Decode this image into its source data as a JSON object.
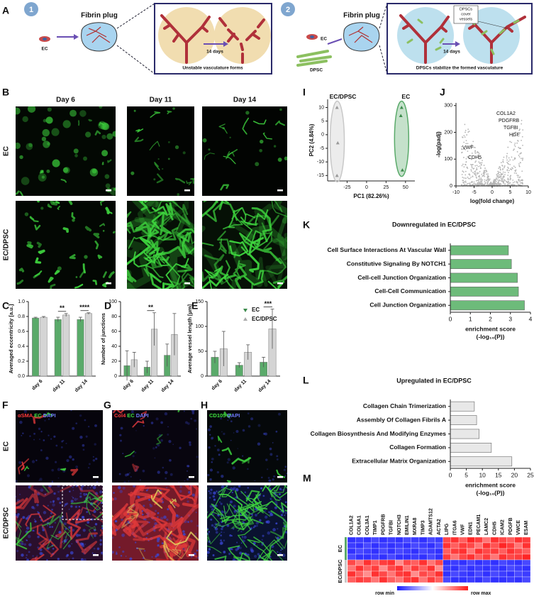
{
  "figure": {
    "labels": [
      "A",
      "B",
      "F",
      "G",
      "H"
    ],
    "schematic": {
      "step1": "1",
      "step2": "2",
      "plug1": "Fibrin plug",
      "plug2": "Fibrin plug",
      "ec1": "EC",
      "ec2": "EC",
      "dpsc": "DPSC",
      "days1": "14 days",
      "days2": "14 days",
      "cover": [
        "DPSCs",
        "cover",
        "vessels"
      ],
      "caption1": "Unstable vasculature forms",
      "caption2": "DPSCs stabilize the formed vasculature"
    },
    "imaging_b": {
      "columns": [
        "Day 6",
        "Day 11",
        "Day 14"
      ],
      "rows": [
        "EC",
        "EC/DPSC"
      ]
    },
    "imaging_fgh": {
      "rows": [
        "EC",
        "EC/DPSC"
      ],
      "stains": [
        [
          {
            "text": "αSMA",
            "color": "#ff3b3b"
          },
          {
            "text": "EC",
            "color": "#3fe03f"
          },
          {
            "text": "DAPI",
            "color": "#6f7bff"
          }
        ],
        [
          {
            "text": "Col4",
            "color": "#ff3b3b"
          },
          {
            "text": "EC",
            "color": "#3fe03f"
          },
          {
            "text": "DAPI",
            "color": "#6f7bff"
          }
        ],
        [
          {
            "text": "CD105",
            "color": "#3fe03f"
          },
          {
            "text": "DAPI",
            "color": "#6f7bff"
          }
        ]
      ]
    },
    "legend": {
      "series": [
        {
          "name": "EC",
          "color": "#5aaa6a"
        },
        {
          "name": "EC/DPSC",
          "color": "#d4d4d4"
        }
      ]
    }
  },
  "chart_data": [
    {
      "type": "grouped_bar",
      "label": "C",
      "ylabel": "Averaged eccentricity [a.u.]",
      "categories": [
        "day 6",
        "day 11",
        "day 14"
      ],
      "series": [
        {
          "values": [
            0.78,
            0.76,
            0.76
          ],
          "errors": [
            0.01,
            0.03,
            0.03
          ]
        },
        {
          "values": [
            0.79,
            0.82,
            0.84
          ],
          "errors": [
            0.01,
            0.02,
            0.01
          ]
        }
      ],
      "annotations": [
        null,
        "**",
        "****"
      ],
      "ylim": [
        0,
        1
      ],
      "yticks": [
        {
          "value": 0,
          "label": "0.0"
        },
        0.2,
        0.4,
        0.6,
        0.8,
        {
          "value": 1,
          "label": "1.0"
        }
      ]
    },
    {
      "type": "grouped_bar",
      "label": "D",
      "ylabel": "Number of junctions",
      "categories": [
        "day 6",
        "day 11",
        "day 14"
      ],
      "series": [
        {
          "values": [
            14,
            12,
            28
          ],
          "errors": [
            20,
            8,
            15
          ]
        },
        {
          "values": [
            22,
            63,
            56
          ],
          "errors": [
            10,
            22,
            28
          ]
        }
      ],
      "annotations": [
        null,
        "**",
        null
      ],
      "ylim": [
        0,
        100
      ],
      "yticks": [
        0,
        20,
        40,
        60,
        80,
        100
      ]
    },
    {
      "type": "grouped_bar",
      "label": "E",
      "ylabel": "Average vessel length [µm]",
      "categories": [
        "day 6",
        "day 11",
        "day 14"
      ],
      "series": [
        {
          "values": [
            38,
            22,
            28
          ],
          "errors": [
            12,
            5,
            10
          ]
        },
        {
          "values": [
            55,
            48,
            95
          ],
          "errors": [
            35,
            15,
            40
          ]
        }
      ],
      "annotations": [
        null,
        null,
        "***"
      ],
      "ylim": [
        0,
        150
      ],
      "yticks": [
        0,
        50,
        100,
        150
      ]
    },
    {
      "type": "scatter",
      "label": "I",
      "xlabel": "PC1 (82.26%)",
      "ylabel": "PC2 (4.84%)",
      "series": [
        {
          "name": "EC/DPSC",
          "color": "#c8c8c8",
          "x": [
            -38,
            -37,
            -38
          ],
          "values": [
            10,
            -3,
            -15
          ]
        },
        {
          "name": "EC",
          "color": "#5aaa6a",
          "x": [
            45,
            44,
            46
          ],
          "values": [
            10,
            7,
            -13
          ]
        }
      ],
      "xlim": [
        -50,
        62
      ],
      "ylim": [
        -17,
        13
      ],
      "xticks": [
        -25,
        0,
        25,
        50
      ],
      "yticks": [
        -15,
        -10,
        -5,
        0,
        5,
        10
      ]
    },
    {
      "type": "volcano",
      "label": "J",
      "xlabel": "log(fold change)",
      "ylabel": "-log(padj)",
      "genes": [
        "COL1A2",
        "PDGFRB",
        "TGFBI",
        "HGF",
        "VWF",
        "CDH5"
      ],
      "xlim": [
        -10,
        10
      ],
      "ylim": [
        0,
        310
      ],
      "xticks": [
        -10,
        -5,
        0,
        5,
        10
      ],
      "yticks": [
        0,
        100,
        200,
        300
      ]
    },
    {
      "type": "hbar",
      "label": "K",
      "title": "Downregulated in EC/DPSC",
      "xlabel": "enrichment score",
      "xlabel2": "(-log₁₀(P))",
      "categories": [
        "Cell Surface Interactions At Vascular Wall",
        "Constitutive Signaling By NOTCH1",
        "Cell-cell Junction Organization",
        "Cell-Cell Communication",
        "Cell Junction Organization"
      ],
      "values": [
        2.9,
        3.05,
        3.35,
        3.4,
        3.7
      ],
      "color": "#6dbb7a",
      "xlim": [
        0,
        4
      ],
      "xticks": [
        0,
        1,
        2,
        3,
        4
      ]
    },
    {
      "type": "hbar",
      "label": "L",
      "title": "Upregulated in EC/DPSC",
      "xlabel": "enrichment score",
      "xlabel2": "(-log₁₀(P))",
      "categories": [
        "Collagen Chain Trimerization",
        "Assembly Of Collagen Fibrils A",
        "Collagen Biosynthesis And Modifying Enzymes",
        "Collagen Formation",
        "Extracellular Matrix Organization"
      ],
      "values": [
        7.5,
        8.2,
        9,
        12.8,
        19.2
      ],
      "color": "#e8e8e8",
      "xlim": [
        0,
        25
      ],
      "xticks": [
        0,
        5,
        10,
        15,
        20,
        25
      ]
    },
    {
      "type": "heatmap",
      "label": "M",
      "columns": [
        "COL1A2",
        "COL6A1",
        "COL3A1",
        "TIMP1",
        "PDGFRB",
        "TGFBI",
        "NOTCH3",
        "EMILIN1",
        "MXRA8",
        "TIMP3",
        "ADAMTS12",
        "ACTA2",
        "LIPG",
        "ITGA6",
        "VWF",
        "EDN1",
        "PECAM1",
        "LAMC2",
        "CDH5",
        "ICAM2",
        "PDGFB",
        "VWCE",
        "ESAM"
      ],
      "groups": [
        {
          "name": "EC",
          "color": "#5aaa6a",
          "rows": [
            [
              -0.9,
              -0.85,
              -0.9,
              -0.8,
              -0.9,
              -0.85,
              -0.9,
              -0.8,
              -0.85,
              -0.9,
              -0.8,
              -0.85,
              0.8,
              0.9,
              0.7,
              0.95,
              0.85,
              0.6,
              0.9,
              0.8,
              0.7,
              0.9,
              0.85
            ],
            [
              -0.85,
              -0.9,
              -0.8,
              -0.9,
              -0.85,
              -0.9,
              -0.85,
              -0.9,
              -0.8,
              -0.85,
              -0.9,
              -0.8,
              0.9,
              0.7,
              0.85,
              0.8,
              0.6,
              0.9,
              0.75,
              0.95,
              0.85,
              0.6,
              0.9
            ],
            [
              -0.9,
              -0.8,
              -0.85,
              -0.9,
              -0.8,
              -0.9,
              -0.8,
              -0.85,
              -0.9,
              -0.8,
              -0.85,
              -0.9,
              0.7,
              0.85,
              0.9,
              0.6,
              0.9,
              0.8,
              0.85,
              0.7,
              0.9,
              0.8,
              0.7
            ],
            [
              -0.8,
              -0.9,
              -0.9,
              -0.85,
              -0.9,
              -0.8,
              -0.9,
              -0.9,
              -0.85,
              -0.9,
              -0.8,
              -0.9,
              0.85,
              0.6,
              0.8,
              0.9,
              0.7,
              0.85,
              0.6,
              0.9,
              0.8,
              0.85,
              0.95
            ]
          ]
        },
        {
          "name": "EC/DPSC",
          "color": "#c8c8c8",
          "rows": [
            [
              0.8,
              0.6,
              0.9,
              0.7,
              0.85,
              0.9,
              0.5,
              0.8,
              0.7,
              0.9,
              0.6,
              0.8,
              -0.9,
              -0.85,
              -0.9,
              -0.8,
              -0.9,
              -0.85,
              -0.9,
              -0.8,
              -0.85,
              -0.9,
              -0.8
            ],
            [
              0.6,
              0.9,
              0.7,
              0.85,
              0.5,
              0.8,
              0.9,
              0.6,
              0.85,
              0.7,
              0.9,
              0.5,
              -0.85,
              -0.9,
              -0.8,
              -0.9,
              -0.85,
              -0.9,
              -0.85,
              -0.9,
              -0.8,
              -0.85,
              -0.9
            ],
            [
              0.9,
              0.7,
              0.5,
              0.9,
              0.8,
              0.6,
              0.85,
              0.9,
              0.5,
              0.8,
              0.7,
              0.9,
              -0.9,
              -0.8,
              -0.85,
              -0.9,
              -0.8,
              -0.9,
              -0.8,
              -0.85,
              -0.9,
              -0.8,
              -0.85
            ],
            [
              0.7,
              0.85,
              0.8,
              0.6,
              0.9,
              0.7,
              0.6,
              0.85,
              0.9,
              0.6,
              0.85,
              0.7,
              -0.8,
              -0.9,
              -0.9,
              -0.85,
              -0.9,
              -0.8,
              -0.9,
              -0.9,
              -0.85,
              -0.9,
              -0.8
            ]
          ]
        }
      ],
      "clim": [
        -1,
        1
      ],
      "low_color": "#1a1aff",
      "high_color": "#ff1a1a",
      "legend_low": "row min",
      "legend_high": "row max"
    }
  ]
}
